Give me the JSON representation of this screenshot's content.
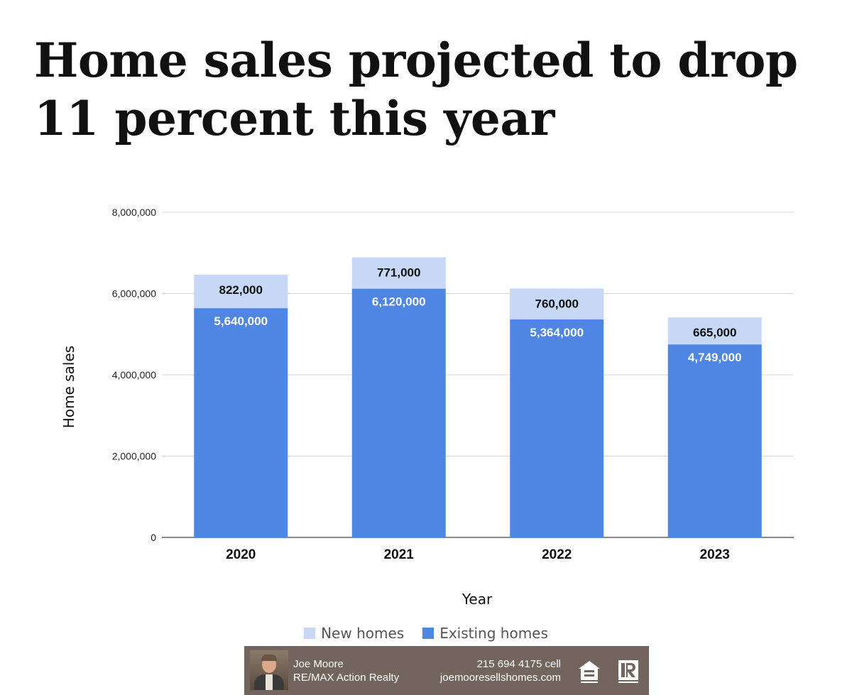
{
  "title": "Home sales projected to drop 11 percent this year",
  "chart_data": {
    "type": "bar",
    "stacked": true,
    "categories": [
      "2020",
      "2021",
      "2022",
      "2023"
    ],
    "series": [
      {
        "name": "Existing homes",
        "color": "#4f86e4",
        "values": [
          5640000,
          6120000,
          5364000,
          4749000
        ],
        "labels": [
          "5,640,000",
          "6,120,000",
          "5,364,000",
          "4,749,000"
        ]
      },
      {
        "name": "New homes",
        "color": "#c6d8f5",
        "values": [
          822000,
          771000,
          760000,
          665000
        ],
        "labels": [
          "822,000",
          "771,000",
          "760,000",
          "665,000"
        ]
      }
    ],
    "xlabel": "Year",
    "ylabel": "Home sales",
    "ylim": [
      0,
      8000000
    ],
    "yticks": [
      0,
      2000000,
      4000000,
      6000000,
      8000000
    ],
    "ytick_labels": [
      "0",
      "2,000,000",
      "4,000,000",
      "6,000,000",
      "8,000,000"
    ],
    "grid": true,
    "legend_position": "bottom",
    "legend_order": [
      "New homes",
      "Existing homes"
    ]
  },
  "legend": {
    "new_label": "New homes",
    "existing_label": "Existing homes",
    "new_color": "#c6d8f5",
    "existing_color": "#4f86e4"
  },
  "footer": {
    "name": "Joe Moore",
    "company": "RE/MAX Action Realty",
    "phone": "215 694 4175 cell",
    "website": "joemooresellshomes.com",
    "icons": [
      "agent-photo",
      "equal-housing-opportunity-icon",
      "realtor-icon"
    ],
    "background": "#72655d"
  }
}
